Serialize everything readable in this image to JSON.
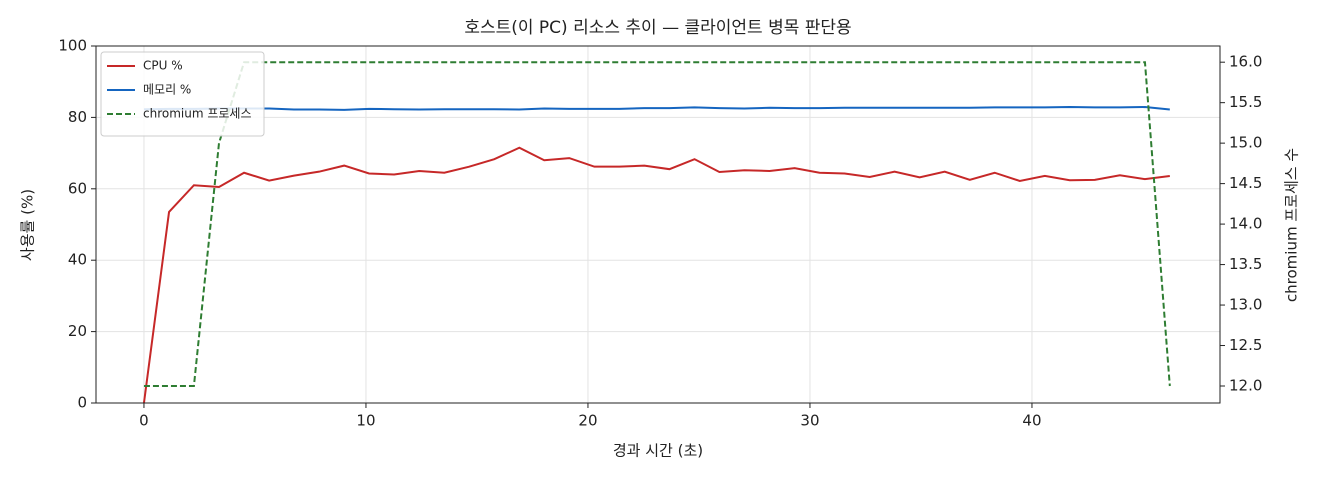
{
  "chart_data": {
    "type": "line",
    "title": "호스트(이 PC) 리소스 추이 — 클라이언트 병목 판단용",
    "xlabel": "경과 시간 (초)",
    "ylabel": "사용률 (%)",
    "y2label": "chromium 프로세스 수",
    "x": [
      0,
      1.13,
      2.25,
      3.38,
      4.51,
      5.64,
      6.76,
      7.89,
      9.02,
      10.14,
      11.27,
      12.4,
      13.53,
      14.65,
      15.78,
      16.91,
      18.03,
      19.16,
      20.29,
      21.42,
      22.54,
      23.67,
      24.8,
      25.92,
      27.05,
      28.18,
      29.31,
      30.43,
      31.56,
      32.69,
      33.81,
      34.94,
      36.07,
      37.2,
      38.32,
      39.45,
      40.58,
      41.7,
      42.83,
      43.96,
      45.09,
      46.21
    ],
    "xlim": [
      -2.16,
      48.47
    ],
    "xticks": [
      0,
      10,
      20,
      30,
      40
    ],
    "ylim": [
      0,
      100
    ],
    "yticks": [
      0,
      20,
      40,
      60,
      80,
      100
    ],
    "y2lim": [
      11.79,
      16.2
    ],
    "y2ticks": [
      {
        "value": 12,
        "label": "12.0"
      },
      {
        "value": 12.5,
        "label": "12.5"
      },
      {
        "value": 13,
        "label": "13.0"
      },
      {
        "value": 13.5,
        "label": "13.5"
      },
      {
        "value": 14,
        "label": "14.0"
      },
      {
        "value": 14.5,
        "label": "14.5"
      },
      {
        "value": 15,
        "label": "15.0"
      },
      {
        "value": 15.5,
        "label": "15.5"
      },
      {
        "value": 16,
        "label": "16.0"
      }
    ],
    "grid": true,
    "legend": "upper left",
    "series": [
      {
        "name": "CPU %",
        "color": "#c62828",
        "linestyle": "solid",
        "values": [
          0,
          53.5,
          61,
          60.5,
          64.5,
          62.3,
          63.7,
          64.8,
          66.5,
          64.3,
          64,
          65,
          64.5,
          66.2,
          68.3,
          71.5,
          68,
          68.6,
          66.2,
          66.2,
          66.5,
          65.5,
          68.3,
          64.7,
          65.2,
          65,
          65.8,
          64.5,
          64.3,
          63.3,
          64.8,
          63.2,
          64.8,
          62.5,
          64.5,
          62.2,
          63.6,
          62.4,
          62.5,
          63.8,
          62.7,
          63.6
        ]
      },
      {
        "name": "메모리 %",
        "color": "#1565c0",
        "linestyle": "solid",
        "values": [
          82.3,
          82.4,
          82.4,
          82.5,
          82.5,
          82.5,
          82.2,
          82.2,
          82.1,
          82.4,
          82.3,
          82.2,
          82.3,
          82.3,
          82.3,
          82.2,
          82.5,
          82.4,
          82.4,
          82.4,
          82.6,
          82.6,
          82.8,
          82.6,
          82.5,
          82.7,
          82.6,
          82.6,
          82.7,
          82.7,
          82.7,
          82.7,
          82.7,
          82.7,
          82.8,
          82.8,
          82.8,
          82.9,
          82.8,
          82.8,
          82.9,
          82.2
        ]
      },
      {
        "name": "chromium 프로세스",
        "color": "#2e7d32",
        "linestyle": "dashed",
        "axis": "y2",
        "values": [
          12,
          12,
          12,
          15,
          16,
          16,
          16,
          16,
          16,
          16,
          16,
          16,
          16,
          16,
          16,
          16,
          16,
          16,
          16,
          16,
          16,
          16,
          16,
          16,
          16,
          16,
          16,
          16,
          16,
          16,
          16,
          16,
          16,
          16,
          16,
          16,
          16,
          16,
          16,
          16,
          16,
          12
        ]
      }
    ]
  }
}
